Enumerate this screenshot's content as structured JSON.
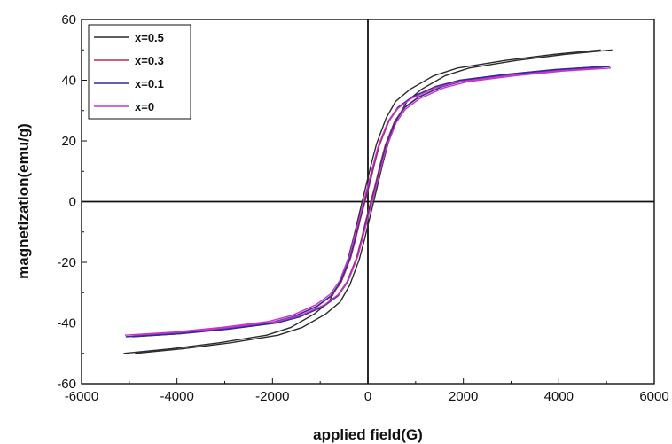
{
  "chart_data": {
    "type": "line",
    "title": "",
    "xlabel": "applied field(G)",
    "ylabel": "magnetization(emu/g)",
    "xlim": [
      -6000,
      6000
    ],
    "ylim": [
      -60,
      60
    ],
    "xticks": [
      -6000,
      -4000,
      -2000,
      0,
      2000,
      4000,
      6000
    ],
    "yticks": [
      -60,
      -40,
      -20,
      0,
      20,
      40,
      60
    ],
    "x_tick_labels": [
      "-6000",
      "-4000",
      "-2000",
      "0",
      "2000",
      "4000",
      "6000"
    ],
    "y_tick_labels": [
      "-60",
      "-40",
      "-20",
      "0",
      "20",
      "40",
      "60"
    ],
    "grid": false,
    "legend_position": "top-left",
    "zero_lines": true,
    "series": [
      {
        "name": "x=0.5",
        "color": "#2b2b2b",
        "x": [
          -5000,
          -4000,
          -3000,
          -2000,
          -1500,
          -1000,
          -700,
          -500,
          -300,
          -200,
          -100,
          0,
          100,
          200,
          300,
          500,
          700,
          1000,
          1500,
          2000,
          3000,
          4000,
          5000
        ],
        "y": [
          -50,
          -48.5,
          -46.5,
          -44,
          -41.5,
          -37,
          -33,
          -27.5,
          -19,
          -13,
          -6.5,
          0,
          6.5,
          13,
          19,
          27.5,
          33,
          37,
          41.5,
          44,
          46.5,
          48.5,
          50
        ],
        "coercivity": 120
      },
      {
        "name": "x=0.3",
        "color": "#b0304a",
        "x": [
          -5000,
          -4000,
          -3000,
          -2000,
          -1500,
          -1000,
          -700,
          -500,
          -300,
          -200,
          -100,
          0,
          100,
          200,
          300,
          500,
          700,
          1000,
          1500,
          2000,
          3000,
          4000,
          5000
        ],
        "y": [
          -44.5,
          -43.5,
          -42,
          -40,
          -38,
          -34.5,
          -31,
          -26.5,
          -18.5,
          -12.5,
          -6,
          0,
          6,
          12.5,
          18.5,
          26.5,
          31,
          34.5,
          38,
          40,
          42,
          43.5,
          44.5
        ],
        "coercivity": 60
      },
      {
        "name": "x=0.1",
        "color": "#2a2f9a",
        "x": [
          -5000,
          -4000,
          -3000,
          -2000,
          -1500,
          -1000,
          -700,
          -500,
          -300,
          -200,
          -100,
          0,
          100,
          200,
          300,
          500,
          700,
          1000,
          1500,
          2000,
          3000,
          4000,
          5000
        ],
        "y": [
          -44.5,
          -43.5,
          -42,
          -40,
          -38,
          -34.5,
          -31,
          -26.5,
          -18.5,
          -12.5,
          -6,
          0,
          6,
          12.5,
          18.5,
          26.5,
          31,
          34.5,
          38,
          40,
          42,
          43.5,
          44.5
        ],
        "coercivity": 75
      },
      {
        "name": "x=0",
        "color": "#cc33cc",
        "x": [
          -5000,
          -4000,
          -3000,
          -2000,
          -1500,
          -1000,
          -700,
          -500,
          -300,
          -200,
          -100,
          0,
          100,
          200,
          300,
          500,
          700,
          1000,
          1500,
          2000,
          3000,
          4000,
          5000
        ],
        "y": [
          -44,
          -43,
          -41.5,
          -39.5,
          -37.5,
          -34,
          -30.5,
          -26,
          -18,
          -12,
          -6,
          0,
          6,
          12,
          18,
          26,
          30.5,
          34,
          37.5,
          39.5,
          41.5,
          43,
          44
        ],
        "coercivity": 90
      }
    ]
  }
}
